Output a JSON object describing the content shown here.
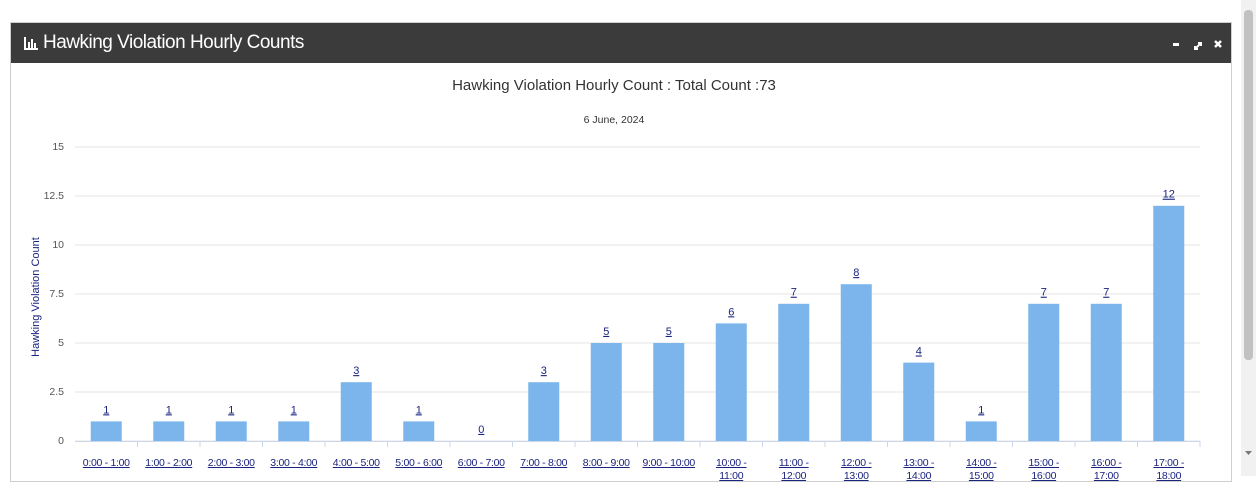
{
  "panel": {
    "title": "Hawking Violation Hourly Counts"
  },
  "chart_data": {
    "type": "bar",
    "title": "Hawking Violation Hourly Count : Total Count :73",
    "subtitle": "6 June, 2024",
    "y_label": "Hawking Violation Count",
    "categories": [
      "0:00 - 1:00",
      "1:00 - 2:00",
      "2:00 - 3:00",
      "3:00 - 4:00",
      "4:00 - 5:00",
      "5:00 - 6:00",
      "6:00 - 7:00",
      "7:00 - 8:00",
      "8:00 - 9:00",
      "9:00 - 10:00",
      "10:00 - 11:00",
      "11:00 - 12:00",
      "12:00 - 13:00",
      "13:00 - 14:00",
      "14:00 - 15:00",
      "15:00 - 16:00",
      "16:00 - 17:00",
      "17:00 - 18:00"
    ],
    "values": [
      1,
      1,
      1,
      1,
      3,
      1,
      0,
      3,
      5,
      5,
      6,
      7,
      8,
      4,
      1,
      7,
      7,
      12
    ],
    "color": "#7cb5ec",
    "ylim": [
      0,
      15
    ],
    "yticks": [
      0,
      2.5,
      5,
      7.5,
      10,
      12.5,
      15
    ],
    "grid": true
  }
}
